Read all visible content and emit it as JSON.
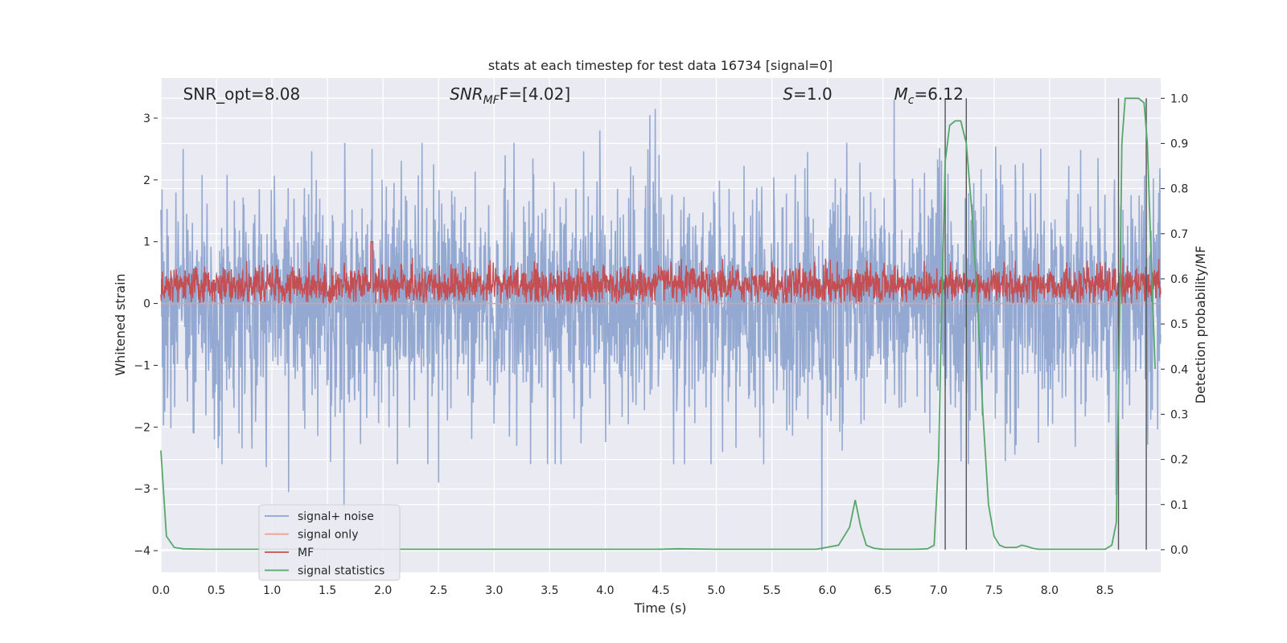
{
  "chart_data": {
    "type": "line",
    "title": "stats at each timestep for test data 16734 [signal=0]",
    "xlabel": "Time (s)",
    "ylabel": "Whitened strain",
    "y2label": "Detection probability/MF",
    "xlim": [
      0.0,
      9.0
    ],
    "ylim": [
      -4.35,
      3.65
    ],
    "y2lim": [
      -0.05,
      1.045
    ],
    "xticks": [
      "0.0",
      "0.5",
      "1.0",
      "1.5",
      "2.0",
      "2.5",
      "3.0",
      "3.5",
      "4.0",
      "4.5",
      "5.0",
      "5.5",
      "6.0",
      "6.5",
      "7.0",
      "7.5",
      "8.0",
      "8.5"
    ],
    "yticks": [
      "3",
      "2",
      "1",
      "0",
      "−1",
      "−2",
      "−3",
      "−4"
    ],
    "y2ticks": [
      "1.0",
      "0.9",
      "0.8",
      "0.7",
      "0.6",
      "0.5",
      "0.4",
      "0.3",
      "0.2",
      "0.1",
      "0.0"
    ],
    "grid": true,
    "legend_position": "lower-left",
    "annotations": [
      {
        "text": "SNR_opt=8.08",
        "x": 0.2
      },
      {
        "text": "SNR",
        "sub": "MF",
        "suffix": "F=[4.02]",
        "x": 2.6
      },
      {
        "text": "S",
        "suffix": "=1.0",
        "x": 5.6
      },
      {
        "text": "M",
        "sub": "c",
        "suffix": "=6.12",
        "x": 6.6
      }
    ],
    "vlines": [
      7.06,
      7.25,
      8.62,
      8.87
    ],
    "series": [
      {
        "name": "signal+ noise",
        "color": "#8fa5cf",
        "axis": "left",
        "description_amplitude": {
          "mean": 0.0,
          "typical_abs": 1.1,
          "min": -4.1,
          "max": 3.15
        },
        "spikes": [
          {
            "x": 0.2,
            "y": 2.5
          },
          {
            "x": 0.55,
            "y": -2.6
          },
          {
            "x": 0.95,
            "y": -2.65
          },
          {
            "x": 1.15,
            "y": -3.05
          },
          {
            "x": 1.65,
            "y": -3.3
          },
          {
            "x": 1.9,
            "y": 2.5
          },
          {
            "x": 2.35,
            "y": 2.6
          },
          {
            "x": 2.5,
            "y": -2.9
          },
          {
            "x": 3.1,
            "y": 2.4
          },
          {
            "x": 3.95,
            "y": 2.8
          },
          {
            "x": 4.4,
            "y": 3.05
          },
          {
            "x": 4.45,
            "y": 3.15
          },
          {
            "x": 5.95,
            "y": -4.0
          },
          {
            "x": 6.6,
            "y": 3.3
          },
          {
            "x": 7.0,
            "y": 2.2
          },
          {
            "x": 7.6,
            "y": -2.55
          },
          {
            "x": 8.6,
            "y": -3.1
          }
        ]
      },
      {
        "name": "signal only",
        "color": "#e8a08a",
        "axis": "left",
        "values_constant": 0.0
      },
      {
        "name": "MF",
        "color": "#c44e52",
        "axis": "left",
        "description_amplitude": {
          "center": 0.3,
          "min": 0.0,
          "max": 0.75
        }
      },
      {
        "name": "signal statistics",
        "color": "#55a868",
        "axis": "right",
        "x": [
          0.0,
          0.05,
          0.12,
          0.2,
          0.4,
          1.0,
          4.5,
          4.65,
          5.0,
          5.9,
          6.1,
          6.2,
          6.25,
          6.3,
          6.35,
          6.42,
          6.5,
          6.6,
          6.8,
          6.9,
          6.96,
          7.0,
          7.03,
          7.06,
          7.1,
          7.15,
          7.2,
          7.25,
          7.3,
          7.35,
          7.4,
          7.45,
          7.5,
          7.55,
          7.6,
          7.7,
          7.75,
          7.8,
          7.85,
          7.9,
          8.0,
          8.5,
          8.56,
          8.6,
          8.63,
          8.65,
          8.68,
          8.72,
          8.8,
          8.85,
          8.88,
          8.92,
          8.95
        ],
        "values": [
          0.22,
          0.03,
          0.005,
          0.002,
          0.001,
          0.001,
          0.001,
          0.002,
          0.001,
          0.001,
          0.01,
          0.05,
          0.11,
          0.05,
          0.01,
          0.003,
          0.001,
          0.001,
          0.001,
          0.002,
          0.01,
          0.2,
          0.55,
          0.86,
          0.94,
          0.95,
          0.95,
          0.9,
          0.75,
          0.55,
          0.3,
          0.1,
          0.03,
          0.01,
          0.005,
          0.005,
          0.01,
          0.007,
          0.003,
          0.001,
          0.001,
          0.001,
          0.01,
          0.06,
          0.5,
          0.9,
          1.0,
          1.0,
          1.0,
          0.99,
          0.9,
          0.6,
          0.4
        ]
      }
    ]
  }
}
